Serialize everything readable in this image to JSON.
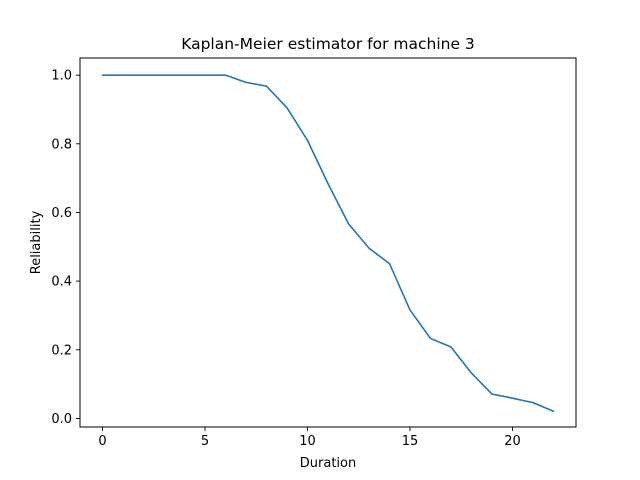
{
  "chart_data": {
    "type": "line",
    "title": "Kaplan-Meier estimator for machine 3",
    "xlabel": "Duration",
    "ylabel": "Reliability",
    "xlim": [
      -1.1,
      23.1
    ],
    "ylim": [
      -0.025,
      1.05
    ],
    "xticks": [
      0,
      5,
      10,
      15,
      20
    ],
    "yticks": [
      0.0,
      0.2,
      0.4,
      0.6,
      0.8,
      1.0
    ],
    "xtick_labels": [
      "0",
      "5",
      "10",
      "15",
      "20"
    ],
    "ytick_labels": [
      "0.0",
      "0.2",
      "0.4",
      "0.6",
      "0.8",
      "1.0"
    ],
    "grid": false,
    "series": [
      {
        "color": "#1f77b4",
        "x": [
          0,
          1,
          2,
          3,
          4,
          5,
          6,
          7,
          8,
          9,
          10,
          11,
          12,
          13,
          14,
          15,
          16,
          17,
          18,
          19,
          20,
          21,
          22
        ],
        "y": [
          1.0,
          1.0,
          1.0,
          1.0,
          1.0,
          1.0,
          1.0,
          0.979,
          0.968,
          0.905,
          0.81,
          0.684,
          0.567,
          0.496,
          0.451,
          0.316,
          0.233,
          0.208,
          0.132,
          0.071,
          0.059,
          0.046,
          0.021
        ]
      }
    ]
  }
}
